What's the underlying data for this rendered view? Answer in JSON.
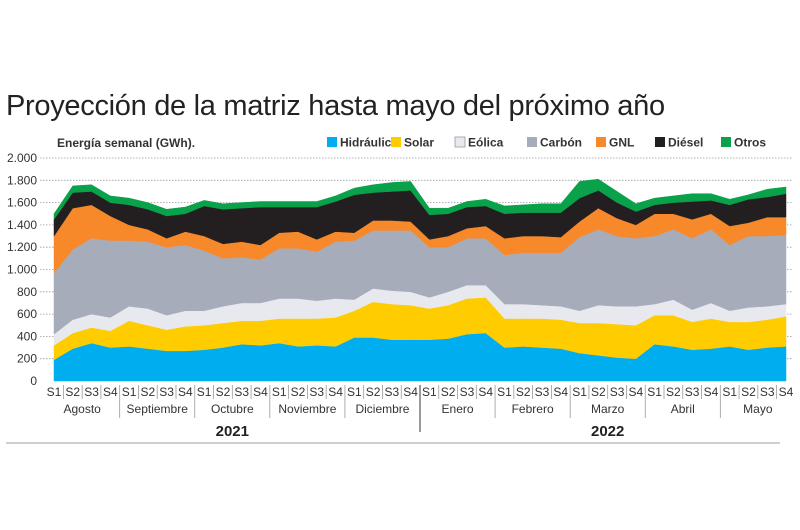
{
  "chart_data": {
    "type": "area",
    "stacked": true,
    "title": "Proyección de la matriz hasta mayo del próximo año",
    "ylabel": "Energía semanal (GWh).",
    "xlabel": "",
    "ylim": [
      0,
      2000
    ],
    "yticks": [
      {
        "value": 0,
        "label": "0"
      },
      {
        "value": 200,
        "label": "200"
      },
      {
        "value": 400,
        "label": "400"
      },
      {
        "value": 600,
        "label": "600"
      },
      {
        "value": 800,
        "label": "800"
      },
      {
        "value": 1000,
        "label": "1.000"
      },
      {
        "value": 1200,
        "label": "1.200"
      },
      {
        "value": 1400,
        "label": "1.400"
      },
      {
        "value": 1600,
        "label": "1.600"
      },
      {
        "value": 1800,
        "label": "1.800"
      },
      {
        "value": 2000,
        "label": "2.000"
      }
    ],
    "grid": true,
    "legend_position": "top-right",
    "week_labels": [
      "S1",
      "S2",
      "S3",
      "S4"
    ],
    "months": [
      {
        "name": "Agosto",
        "year": "2021"
      },
      {
        "name": "Septiembre",
        "year": "2021"
      },
      {
        "name": "Octubre",
        "year": "2021"
      },
      {
        "name": "Noviembre",
        "year": "2021"
      },
      {
        "name": "Diciembre",
        "year": "2021"
      },
      {
        "name": "Enero",
        "year": "2022"
      },
      {
        "name": "Febrero",
        "year": "2022"
      },
      {
        "name": "Marzo",
        "year": "2022"
      },
      {
        "name": "Abril",
        "year": "2022"
      },
      {
        "name": "Mayo",
        "year": "2022"
      }
    ],
    "years": [
      {
        "label": "2021",
        "months": 5
      },
      {
        "label": "2022",
        "months": 5
      }
    ],
    "series": [
      {
        "name": "Hidráulica",
        "color": "#00aeef",
        "values": [
          190,
          290,
          340,
          300,
          310,
          290,
          270,
          270,
          280,
          300,
          330,
          320,
          340,
          310,
          320,
          310,
          390,
          390,
          370,
          370,
          370,
          380,
          420,
          430,
          300,
          310,
          300,
          290,
          250,
          230,
          210,
          200,
          330,
          310,
          280,
          290,
          310,
          280,
          300,
          310
        ]
      },
      {
        "name": "Solar",
        "color": "#ffcc00",
        "values": [
          130,
          140,
          140,
          150,
          230,
          210,
          190,
          220,
          220,
          220,
          210,
          220,
          220,
          250,
          240,
          260,
          240,
          320,
          320,
          310,
          280,
          300,
          320,
          320,
          260,
          250,
          260,
          260,
          270,
          290,
          300,
          300,
          260,
          280,
          250,
          270,
          220,
          250,
          250,
          270
        ]
      },
      {
        "name": "Eólica",
        "color": "#e8e9ee",
        "values": [
          100,
          120,
          120,
          120,
          130,
          150,
          130,
          140,
          130,
          150,
          160,
          160,
          180,
          180,
          160,
          170,
          100,
          120,
          120,
          120,
          100,
          120,
          120,
          110,
          130,
          130,
          120,
          120,
          110,
          160,
          160,
          170,
          100,
          140,
          110,
          140,
          100,
          130,
          120,
          110
        ]
      },
      {
        "name": "Carbón",
        "color": "#a7acbb",
        "values": [
          550,
          630,
          680,
          690,
          590,
          600,
          610,
          590,
          540,
          430,
          410,
          390,
          450,
          450,
          440,
          510,
          530,
          520,
          540,
          550,
          450,
          400,
          420,
          420,
          440,
          460,
          470,
          480,
          660,
          680,
          630,
          610,
          610,
          630,
          640,
          660,
          590,
          640,
          630,
          620
        ]
      },
      {
        "name": "GNL",
        "color": "#f7892b",
        "values": [
          330,
          370,
          300,
          220,
          140,
          110,
          80,
          120,
          130,
          130,
          140,
          130,
          140,
          150,
          110,
          90,
          70,
          90,
          90,
          80,
          70,
          100,
          90,
          110,
          150,
          150,
          150,
          140,
          140,
          190,
          160,
          120,
          200,
          140,
          170,
          140,
          170,
          120,
          170,
          160
        ]
      },
      {
        "name": "Diésel",
        "color": "#231f20",
        "values": [
          150,
          140,
          120,
          120,
          180,
          180,
          200,
          160,
          270,
          310,
          300,
          340,
          230,
          220,
          290,
          270,
          340,
          250,
          260,
          280,
          220,
          200,
          190,
          180,
          220,
          210,
          210,
          220,
          210,
          160,
          140,
          120,
          80,
          100,
          160,
          120,
          190,
          210,
          180,
          210
        ]
      },
      {
        "name": "Otros",
        "color": "#0aa14b",
        "values": [
          50,
          60,
          60,
          60,
          60,
          60,
          60,
          60,
          50,
          50,
          50,
          50,
          50,
          50,
          50,
          50,
          60,
          70,
          80,
          80,
          60,
          50,
          50,
          60,
          70,
          70,
          80,
          80,
          150,
          100,
          100,
          70,
          60,
          60,
          70,
          60,
          50,
          40,
          70,
          60
        ]
      }
    ]
  }
}
